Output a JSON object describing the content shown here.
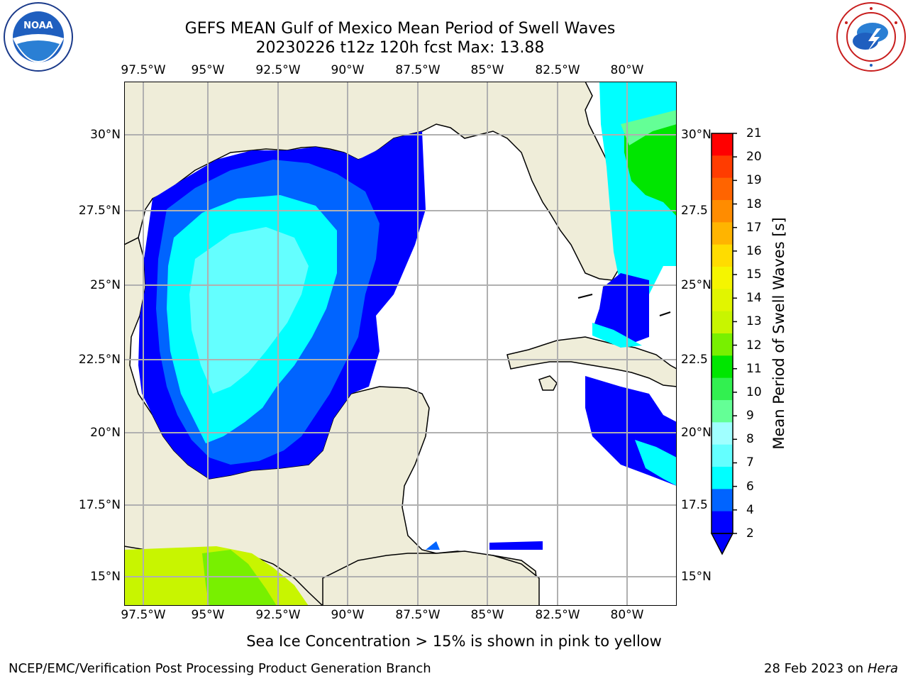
{
  "header": {
    "title_line1": "GEFS MEAN Gulf of Mexico Mean Period of Swell Waves",
    "title_line2": "20230226 t12z 120h fcst   Max: 13.88"
  },
  "logos": {
    "left": {
      "text": "NOAA",
      "ring_text": "NATIONAL OCEANIC AND ATMOSPHERIC ADMINISTRATION · U.S. DEPARTMENT OF COMMERCE"
    },
    "right": {
      "ring_text": "NATIONAL WEATHER SERVICE"
    }
  },
  "map": {
    "lon_ticks": [
      "97.5°W",
      "95°W",
      "92.5°W",
      "90°W",
      "87.5°W",
      "85°W",
      "82.5°W",
      "80°W"
    ],
    "lat_ticks_left": [
      "30°N",
      "27.5°N",
      "25°N",
      "22.5°N",
      "20°N",
      "17.5°N",
      "15°N"
    ],
    "lat_ticks_right": [
      "30°N",
      "27.5",
      "25°N",
      "22.5",
      "20°N",
      "17.5",
      "15°N"
    ],
    "land_color": "#efedd9",
    "water_color": "#ffffff",
    "grid_color": "#b0b0b0"
  },
  "colorbar": {
    "label": "Mean Period of Swell Waves [s]",
    "ticks": [
      "21",
      "20",
      "19",
      "18",
      "17",
      "16",
      "15",
      "14",
      "13",
      "12",
      "11",
      "10",
      "9",
      "8",
      "7",
      "6",
      "4",
      "2"
    ],
    "colors": [
      "#ff0000",
      "#ff3c00",
      "#ff6400",
      "#ff8c00",
      "#ffb400",
      "#ffdc00",
      "#f5f500",
      "#e1f500",
      "#c8f500",
      "#78f000",
      "#00e600",
      "#32f050",
      "#64ff96",
      "#a0ffff",
      "#64ffff",
      "#00ffff",
      "#0064ff",
      "#0000ff"
    ],
    "extend_color": "#0000ff"
  },
  "notes": {
    "sea_ice": "Sea Ice Concentration > 15% is shown in pink to yellow",
    "credit": "NCEP/EMC/Verification Post Processing Product Generation Branch",
    "date": "28 Feb 2023 on",
    "host": "Hera"
  }
}
